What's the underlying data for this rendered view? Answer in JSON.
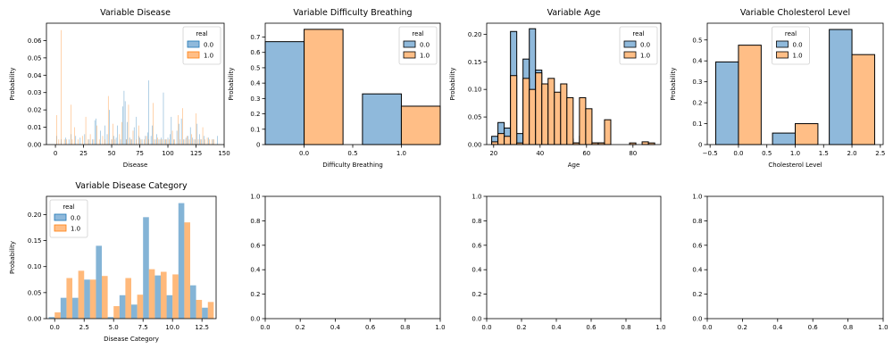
{
  "colors": {
    "c0": "#1f77b4",
    "c1": "#ff7f0e",
    "c0_fill": "#8fb9db",
    "c1_fill": "#ffbe86",
    "edge": "#000000"
  },
  "legend_title": "real",
  "legend_labels": [
    "0.0",
    "1.0"
  ],
  "chart_data": [
    {
      "type": "bar",
      "title": "Variable Disease",
      "xlabel": "Disease",
      "ylabel": "Probability",
      "xlim": [
        -8,
        150
      ],
      "ylim": [
        0,
        0.07
      ],
      "xticks": [
        0,
        25,
        50,
        75,
        100,
        125,
        150
      ],
      "yticks": [
        0.0,
        0.01,
        0.02,
        0.03,
        0.04,
        0.05,
        0.06
      ],
      "ytick_labels": [
        "0.00",
        "0.01",
        "0.02",
        "0.03",
        "0.04",
        "0.05",
        "0.06"
      ],
      "legend": "top-right",
      "bin_width": 0.5,
      "edge": false,
      "series": [
        {
          "name": "0.0",
          "x": [
            1,
            5,
            9,
            12,
            14,
            18,
            22,
            26,
            30,
            33,
            35,
            36,
            40,
            44,
            46,
            48,
            50,
            52,
            54,
            55,
            58,
            60,
            61,
            62,
            63,
            64,
            66,
            68,
            70,
            72,
            74,
            75,
            77,
            80,
            82,
            83,
            85,
            86,
            88,
            90,
            92,
            94,
            96,
            98,
            100,
            102,
            103,
            105,
            108,
            110,
            112,
            114,
            116,
            118,
            120,
            122,
            124,
            126,
            128,
            130,
            132,
            136,
            140,
            144
          ],
          "values": [
            0.005,
            0.003,
            0.004,
            0.003,
            0.006,
            0.005,
            0.004,
            0.006,
            0.003,
            0.003,
            0.014,
            0.015,
            0.008,
            0.011,
            0.006,
            0.02,
            0.003,
            0.005,
            0.004,
            0.011,
            0.003,
            0.022,
            0.031,
            0.025,
            0.003,
            0.013,
            0.004,
            0.003,
            0.01,
            0.016,
            0.005,
            0.004,
            0.003,
            0.005,
            0.007,
            0.037,
            0.005,
            0.011,
            0.003,
            0.006,
            0.003,
            0.004,
            0.03,
            0.003,
            0.004,
            0.006,
            0.016,
            0.003,
            0.008,
            0.012,
            0.015,
            0.003,
            0.004,
            0.005,
            0.01,
            0.004,
            0.003,
            0.012,
            0.006,
            0.003,
            0.005,
            0.004,
            0.003,
            0.005
          ]
        },
        {
          "name": "1.0",
          "x": [
            1,
            3,
            5,
            8,
            10,
            14,
            15,
            17,
            20,
            24,
            27,
            29,
            31,
            34,
            37,
            39,
            42,
            44,
            47,
            50,
            51,
            53,
            57,
            59,
            63,
            65,
            67,
            69,
            72,
            74,
            76,
            79,
            81,
            83,
            87,
            89,
            91,
            93,
            95,
            97,
            99,
            101,
            104,
            106,
            109,
            111,
            113,
            115,
            117,
            119,
            121,
            123,
            125,
            127,
            129,
            131,
            133,
            135,
            137,
            139,
            141
          ],
          "values": [
            0.017,
            0.003,
            0.066,
            0.003,
            0.003,
            0.023,
            0.003,
            0.01,
            0.003,
            0.005,
            0.016,
            0.003,
            0.006,
            0.003,
            0.011,
            0.003,
            0.005,
            0.003,
            0.028,
            0.003,
            0.012,
            0.003,
            0.006,
            0.013,
            0.003,
            0.023,
            0.003,
            0.008,
            0.003,
            0.011,
            0.003,
            0.003,
            0.005,
            0.003,
            0.024,
            0.003,
            0.004,
            0.003,
            0.003,
            0.003,
            0.003,
            0.003,
            0.008,
            0.003,
            0.017,
            0.003,
            0.021,
            0.003,
            0.005,
            0.003,
            0.006,
            0.003,
            0.018,
            0.003,
            0.003,
            0.01,
            0.003,
            0.004,
            0.003,
            0.003,
            0.003
          ]
        }
      ]
    },
    {
      "type": "bar",
      "title": "Variable Difficulty Breathing",
      "xlabel": "Difficulty Breathing",
      "ylabel": "Probability",
      "xlim": [
        -0.4,
        1.4
      ],
      "ylim": [
        0,
        0.79
      ],
      "xticks": [
        0.0,
        0.5,
        1.0
      ],
      "xtick_labels": [
        "0.0",
        "0.5",
        "1.0"
      ],
      "yticks": [
        0,
        0.1,
        0.2,
        0.3,
        0.4,
        0.5,
        0.6,
        0.7
      ],
      "ytick_labels": [
        "0",
        "0.1",
        "0.2",
        "0.3",
        "0.4",
        "0.5",
        "0.6",
        "0.7"
      ],
      "legend": "top-right",
      "bin_width": 0.4,
      "edge": true,
      "series": [
        {
          "name": "0.0",
          "x": [
            -0.2,
            0.8
          ],
          "values": [
            0.67,
            0.33
          ]
        },
        {
          "name": "1.0",
          "x": [
            0.2,
            1.2
          ],
          "values": [
            0.75,
            0.25
          ]
        }
      ]
    },
    {
      "type": "bar",
      "title": "Variable Age",
      "xlabel": "Age",
      "ylabel": "Probability",
      "xlim": [
        17,
        92
      ],
      "ylim": [
        0,
        0.22
      ],
      "xticks": [
        20,
        40,
        60,
        80
      ],
      "yticks": [
        0.0,
        0.05,
        0.1,
        0.15,
        0.2
      ],
      "ytick_labels": [
        "0.00",
        "0.05",
        "0.10",
        "0.15",
        "0.20"
      ],
      "legend": "top-right",
      "bin_width": 2.7,
      "edge": true,
      "series": [
        {
          "name": "0.0",
          "x": [
            20.5,
            23.2,
            25.9,
            28.6,
            31.3,
            34.0,
            36.7,
            39.4,
            42.1,
            44.8,
            47.5,
            50.2,
            52.9,
            55.6,
            58.3,
            61.0,
            63.7,
            66.4
          ],
          "values": [
            0.015,
            0.04,
            0.03,
            0.205,
            0.02,
            0.155,
            0.21,
            0.135,
            0.05,
            0.075,
            0.02,
            0.04,
            0.01,
            0.003,
            0.015,
            0.005,
            0.003,
            0.003
          ]
        },
        {
          "name": "1.0",
          "x": [
            20.5,
            23.2,
            25.9,
            28.6,
            31.3,
            34.0,
            36.7,
            39.4,
            42.1,
            44.8,
            47.5,
            50.2,
            52.9,
            55.6,
            58.3,
            61.0,
            63.7,
            66.4,
            69.1,
            79.9,
            85.3,
            88.0
          ],
          "values": [
            0.005,
            0.02,
            0.015,
            0.125,
            0.003,
            0.12,
            0.1,
            0.13,
            0.11,
            0.12,
            0.095,
            0.11,
            0.085,
            0.003,
            0.085,
            0.065,
            0.003,
            0.003,
            0.045,
            0.003,
            0.005,
            0.003
          ]
        }
      ]
    },
    {
      "type": "bar",
      "title": "Variable Cholesterol Level",
      "xlabel": "Cholesterol Level",
      "ylabel": "Probability",
      "xlim": [
        -0.55,
        2.55
      ],
      "ylim": [
        0,
        0.58
      ],
      "xticks": [
        -0.5,
        0.0,
        0.5,
        1.0,
        1.5,
        2.0,
        2.5
      ],
      "xtick_labels": [
        "−0.5",
        "0.0",
        "0.5",
        "1.0",
        "1.5",
        "2.0",
        "2.5"
      ],
      "yticks": [
        0,
        0.1,
        0.2,
        0.3,
        0.4,
        0.5
      ],
      "ytick_labels": [
        "0",
        "0.1",
        "0.2",
        "0.3",
        "0.4",
        "0.5"
      ],
      "legend": "top-center",
      "bin_width": 0.4,
      "edge": true,
      "series": [
        {
          "name": "0.0",
          "x": [
            -0.2,
            0.8,
            1.8
          ],
          "values": [
            0.395,
            0.055,
            0.55
          ]
        },
        {
          "name": "1.0",
          "x": [
            0.2,
            1.2,
            2.2
          ],
          "values": [
            0.475,
            0.1,
            0.43
          ]
        }
      ]
    },
    {
      "type": "bar",
      "title": "Variable Disease Category",
      "xlabel": "Disease Category",
      "ylabel": "Probability",
      "xlim": [
        -0.7,
        13.7
      ],
      "ylim": [
        0,
        0.235
      ],
      "xticks": [
        0.0,
        2.5,
        5.0,
        7.5,
        10.0,
        12.5
      ],
      "xtick_labels": [
        "0.0",
        "2.5",
        "5.0",
        "7.5",
        "10.0",
        "12.5"
      ],
      "yticks": [
        0.0,
        0.05,
        0.1,
        0.15,
        0.2
      ],
      "ytick_labels": [
        "0.00",
        "0.05",
        "0.10",
        "0.15",
        "0.20"
      ],
      "legend": "top-left",
      "bin_width": 0.5,
      "edge": false,
      "series": [
        {
          "name": "0.0",
          "x": [
            -0.25,
            0.75,
            1.75,
            2.75,
            3.75,
            4.75,
            5.75,
            6.75,
            7.75,
            8.75,
            9.75,
            10.75,
            11.75,
            12.75
          ],
          "values": [
            0.003,
            0.04,
            0.04,
            0.075,
            0.14,
            0.003,
            0.045,
            0.027,
            0.195,
            0.083,
            0.045,
            0.222,
            0.064,
            0.021
          ]
        },
        {
          "name": "1.0",
          "x": [
            0.25,
            1.25,
            2.25,
            3.25,
            4.25,
            5.25,
            6.25,
            7.25,
            8.25,
            9.25,
            10.25,
            11.25,
            12.25,
            13.25
          ],
          "values": [
            0.012,
            0.078,
            0.092,
            0.075,
            0.082,
            0.024,
            0.078,
            0.046,
            0.095,
            0.09,
            0.085,
            0.185,
            0.036,
            0.032
          ]
        }
      ]
    },
    {
      "type": "bar",
      "title": "",
      "xlabel": "",
      "ylabel": "",
      "xlim": [
        0,
        1
      ],
      "ylim": [
        0,
        1
      ],
      "xticks": [
        0.0,
        0.2,
        0.4,
        0.6,
        0.8,
        1.0
      ],
      "xtick_labels": [
        "0.0",
        "0.2",
        "0.4",
        "0.6",
        "0.8",
        "1.0"
      ],
      "yticks": [
        0.0,
        0.2,
        0.4,
        0.6,
        0.8,
        1.0
      ],
      "ytick_labels": [
        "0.0",
        "0.2",
        "0.4",
        "0.6",
        "0.8",
        "1.0"
      ],
      "legend": "none",
      "series": []
    },
    {
      "type": "bar",
      "title": "",
      "xlabel": "",
      "ylabel": "",
      "xlim": [
        0,
        1
      ],
      "ylim": [
        0,
        1
      ],
      "xticks": [
        0.0,
        0.2,
        0.4,
        0.6,
        0.8,
        1.0
      ],
      "xtick_labels": [
        "0.0",
        "0.2",
        "0.4",
        "0.6",
        "0.8",
        "1.0"
      ],
      "yticks": [
        0.0,
        0.2,
        0.4,
        0.6,
        0.8,
        1.0
      ],
      "ytick_labels": [
        "0.0",
        "0.2",
        "0.4",
        "0.6",
        "0.8",
        "1.0"
      ],
      "legend": "none",
      "series": []
    },
    {
      "type": "bar",
      "title": "",
      "xlabel": "",
      "ylabel": "",
      "xlim": [
        0,
        1
      ],
      "ylim": [
        0,
        1
      ],
      "xticks": [
        0.0,
        0.2,
        0.4,
        0.6,
        0.8,
        1.0
      ],
      "xtick_labels": [
        "0.0",
        "0.2",
        "0.4",
        "0.6",
        "0.8",
        "1.0"
      ],
      "yticks": [
        0.0,
        0.2,
        0.4,
        0.6,
        0.8,
        1.0
      ],
      "ytick_labels": [
        "0.0",
        "0.2",
        "0.4",
        "0.6",
        "0.8",
        "1.0"
      ],
      "legend": "none",
      "series": []
    }
  ]
}
